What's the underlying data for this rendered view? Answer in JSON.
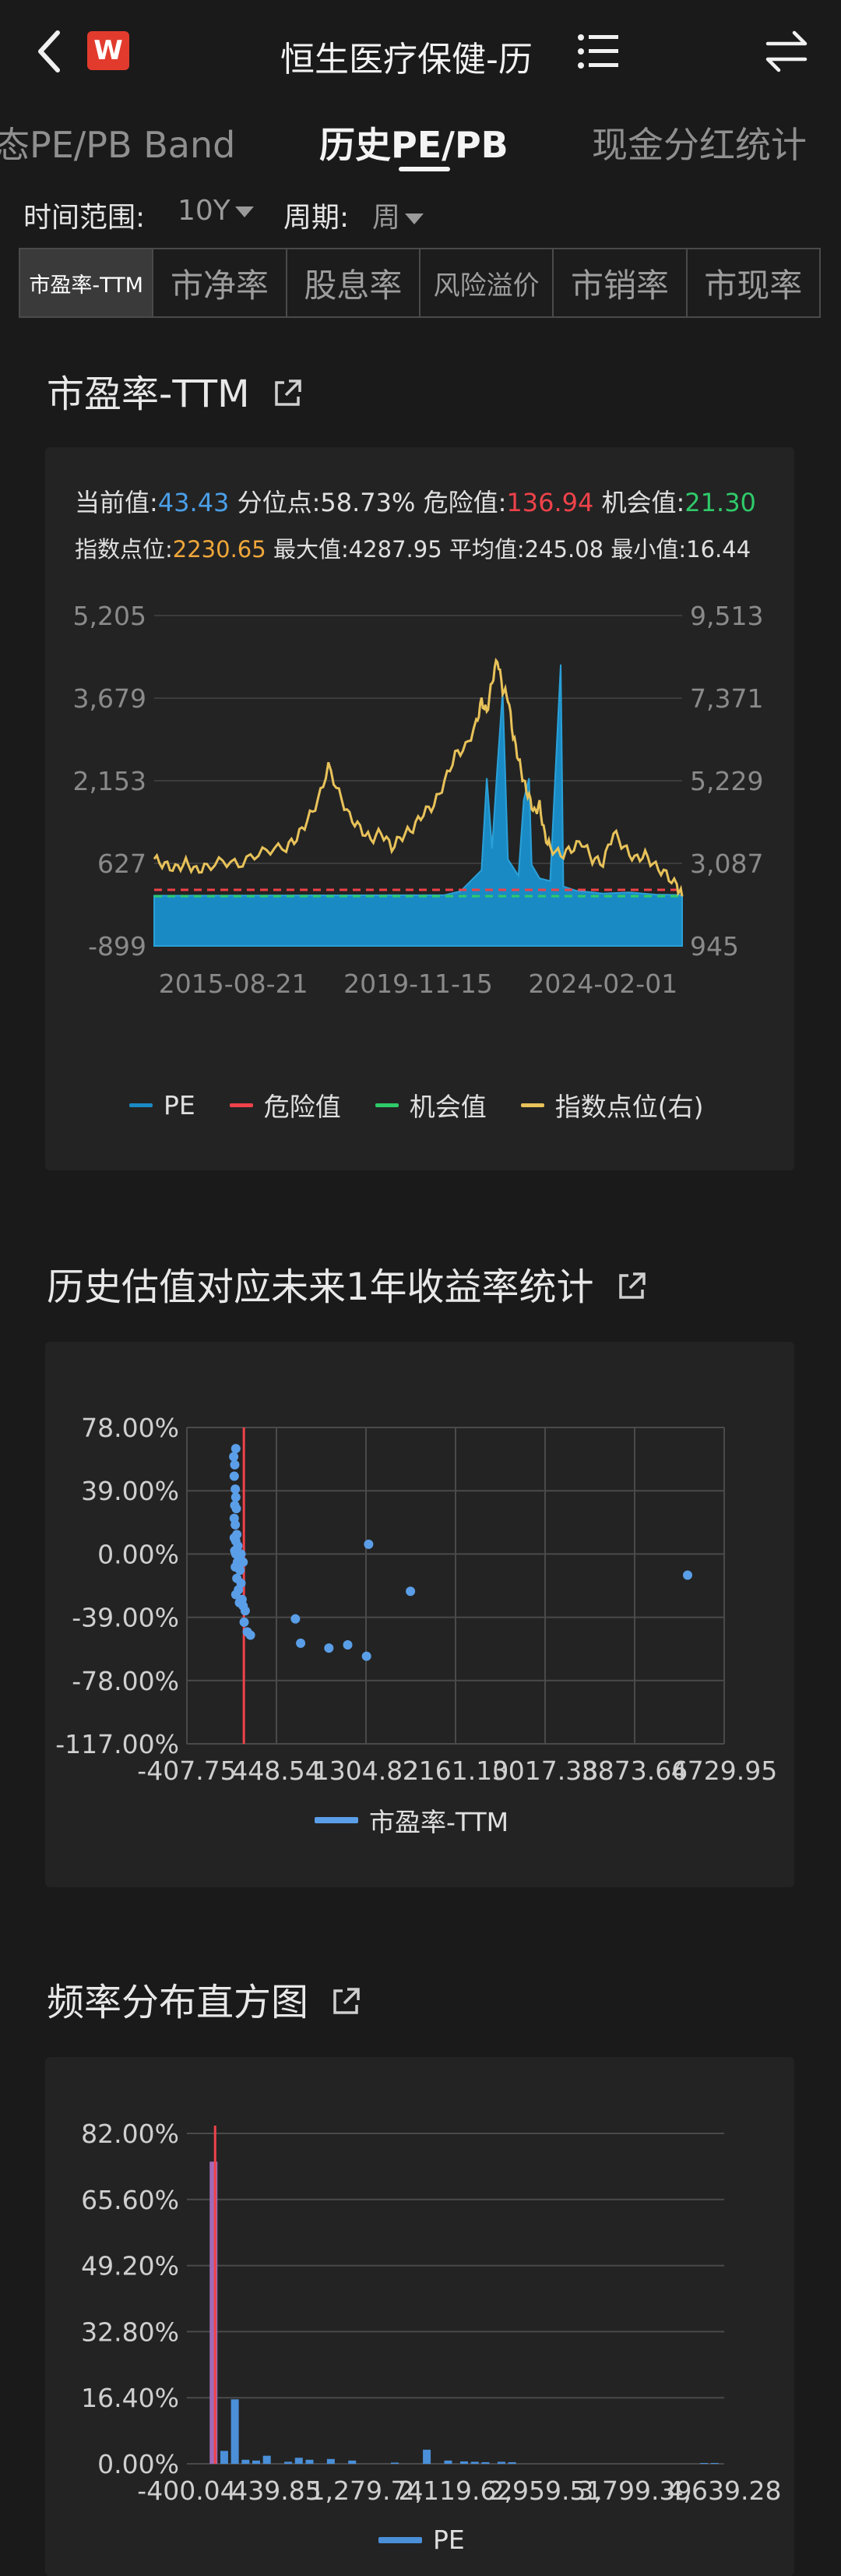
{
  "header": {
    "logo_text": "W",
    "title": "恒生医疗保健-历",
    "back_icon": "chevron-left-icon",
    "list_icon": "list-icon",
    "swap_icon": "swap-icon"
  },
  "tabs": [
    {
      "label": "态PE/PB Band"
    },
    {
      "label": "历史PE/PB"
    },
    {
      "label": "现金分红统计"
    }
  ],
  "filters": {
    "range_label": "时间范围:",
    "range_value": "10Y",
    "period_label": "周期:",
    "period_value": "周"
  },
  "metric_tabs": [
    {
      "label": "市盈率-TTM"
    },
    {
      "label": "市净率"
    },
    {
      "label": "股息率"
    },
    {
      "label": "风险溢价"
    },
    {
      "label": "市销率"
    },
    {
      "label": "市现率"
    }
  ],
  "pe_section": {
    "title": "市盈率-TTM",
    "stats": {
      "current_label": "当前值:",
      "current": "43.43",
      "pct_label": "分位点:",
      "pct": "58.73%",
      "danger_label": "危险值:",
      "danger": "136.94",
      "chance_label": "机会值:",
      "chance": "21.30",
      "index_label": "指数点位:",
      "index": "2230.65",
      "max_label": "最大值:",
      "max": "4287.95",
      "avg_label": "平均值:",
      "avg": "245.08",
      "min_label": "最小值:",
      "min": "16.44"
    },
    "legend": [
      "PE",
      "危险值",
      "机会值",
      "指数点位(右)"
    ]
  },
  "ret_section": {
    "title": "历史估值对应未来1年收益率统计",
    "legend": "市盈率-TTM"
  },
  "hist_section": {
    "title": "频率分布直方图",
    "legend": "PE"
  },
  "colors": {
    "pe": "#1a8ac4",
    "danger": "#f0424a",
    "chance": "#2fca6a",
    "index": "#e8c25a",
    "scatter": "#5a9ee8",
    "bar": "#4a8fd8"
  },
  "chart_data": [
    {
      "type": "area",
      "name": "pe-ttm-history",
      "x_ticks": [
        "2015-08-21",
        "2019-11-15",
        "2024-02-01"
      ],
      "y_left_ticks": [
        "5,205",
        "3,679",
        "2,153",
        "627",
        "-899"
      ],
      "y_right_ticks": [
        "9,513",
        "7,371",
        "5,229",
        "3,087",
        "945"
      ],
      "ylim_left": [
        -899,
        5205
      ],
      "ylim_right": [
        945,
        9513
      ],
      "danger_value": 136.94,
      "chance_value": 21.3,
      "pe_series": [
        [
          0,
          30
        ],
        [
          0.55,
          40
        ],
        [
          0.58,
          110
        ],
        [
          0.62,
          500
        ],
        [
          0.63,
          2200
        ],
        [
          0.64,
          900
        ],
        [
          0.65,
          2400
        ],
        [
          0.66,
          3800
        ],
        [
          0.67,
          700
        ],
        [
          0.69,
          400
        ],
        [
          0.7,
          1800
        ],
        [
          0.71,
          2200
        ],
        [
          0.715,
          600
        ],
        [
          0.73,
          350
        ],
        [
          0.75,
          300
        ],
        [
          0.77,
          4300
        ],
        [
          0.775,
          200
        ],
        [
          0.8,
          120
        ],
        [
          0.85,
          70
        ],
        [
          0.9,
          90
        ],
        [
          0.95,
          50
        ],
        [
          1.0,
          43
        ]
      ],
      "index_series": [
        [
          0.0,
          3200
        ],
        [
          0.02,
          3050
        ],
        [
          0.04,
          2950
        ],
        [
          0.06,
          3100
        ],
        [
          0.08,
          2900
        ],
        [
          0.1,
          3000
        ],
        [
          0.13,
          3150
        ],
        [
          0.16,
          3050
        ],
        [
          0.19,
          3300
        ],
        [
          0.22,
          3450
        ],
        [
          0.25,
          3500
        ],
        [
          0.27,
          3750
        ],
        [
          0.29,
          4200
        ],
        [
          0.31,
          4700
        ],
        [
          0.33,
          5600
        ],
        [
          0.35,
          4900
        ],
        [
          0.37,
          4300
        ],
        [
          0.39,
          4000
        ],
        [
          0.41,
          3700
        ],
        [
          0.43,
          3900
        ],
        [
          0.45,
          3500
        ],
        [
          0.47,
          3800
        ],
        [
          0.49,
          4000
        ],
        [
          0.51,
          4400
        ],
        [
          0.53,
          4600
        ],
        [
          0.55,
          5200
        ],
        [
          0.57,
          5900
        ],
        [
          0.59,
          6100
        ],
        [
          0.61,
          6700
        ],
        [
          0.62,
          7300
        ],
        [
          0.63,
          7000
        ],
        [
          0.64,
          7800
        ],
        [
          0.65,
          8400
        ],
        [
          0.66,
          7600
        ],
        [
          0.67,
          7400
        ],
        [
          0.68,
          6400
        ],
        [
          0.69,
          5800
        ],
        [
          0.7,
          5200
        ],
        [
          0.71,
          4800
        ],
        [
          0.72,
          4400
        ],
        [
          0.73,
          4600
        ],
        [
          0.74,
          3800
        ],
        [
          0.75,
          3500
        ],
        [
          0.77,
          3300
        ],
        [
          0.79,
          3450
        ],
        [
          0.81,
          3650
        ],
        [
          0.83,
          3200
        ],
        [
          0.85,
          3100
        ],
        [
          0.87,
          3900
        ],
        [
          0.89,
          3500
        ],
        [
          0.91,
          3200
        ],
        [
          0.93,
          3300
        ],
        [
          0.95,
          3000
        ],
        [
          0.97,
          2800
        ],
        [
          0.99,
          2500
        ],
        [
          1.0,
          2230
        ]
      ]
    },
    {
      "type": "scatter",
      "name": "future-return-vs-pe",
      "x_ticks": [
        "-407.75",
        "448.54",
        "1304.82",
        "2161.10",
        "3017.38",
        "3873.66",
        "4729.95"
      ],
      "y_ticks": [
        "78.00%",
        "39.00%",
        "0.00%",
        "-39.00%",
        "-78.00%",
        "-117.00%"
      ],
      "xlim": [
        -407.75,
        4729.95
      ],
      "ylim": [
        -117,
        78
      ],
      "danger_x": 136.94,
      "points": [
        [
          40,
          60
        ],
        [
          50,
          55
        ],
        [
          45,
          48
        ],
        [
          55,
          40
        ],
        [
          60,
          35
        ],
        [
          50,
          30
        ],
        [
          65,
          28
        ],
        [
          45,
          22
        ],
        [
          55,
          18
        ],
        [
          70,
          12
        ],
        [
          60,
          8
        ],
        [
          80,
          5
        ],
        [
          50,
          2
        ],
        [
          90,
          -2
        ],
        [
          75,
          -5
        ],
        [
          55,
          -8
        ],
        [
          100,
          -10
        ],
        [
          70,
          -15
        ],
        [
          110,
          -18
        ],
        [
          85,
          -22
        ],
        [
          60,
          -25
        ],
        [
          120,
          -28
        ],
        [
          95,
          -30
        ],
        [
          130,
          -32
        ],
        [
          150,
          -35
        ],
        [
          140,
          -42
        ],
        [
          170,
          -48
        ],
        [
          200,
          -50
        ],
        [
          60,
          0
        ],
        [
          45,
          10
        ],
        [
          60,
          65
        ],
        [
          110,
          0
        ],
        [
          130,
          -5
        ],
        [
          630,
          -40
        ],
        [
          680,
          -55
        ],
        [
          950,
          -58
        ],
        [
          1130,
          -56
        ],
        [
          1330,
          6
        ],
        [
          1310,
          -63
        ],
        [
          1730,
          -23
        ],
        [
          4380,
          -13
        ]
      ]
    },
    {
      "type": "bar",
      "name": "pe-frequency-histogram",
      "x_ticks": [
        "-400.04",
        "439.85",
        "1,279.74",
        "2,119.62",
        "2,959.51",
        "3,799.39",
        "4,639.28"
      ],
      "y_ticks": [
        "82.00%",
        "65.60%",
        "49.20%",
        "32.80%",
        "16.40%",
        "0.00%"
      ],
      "xlim": [
        -400.04,
        4639.28
      ],
      "ylim": [
        0,
        82
      ],
      "danger_x": 136.94,
      "bins": [
        [
          -150,
          75
        ],
        [
          -50,
          3.2
        ],
        [
          50,
          16
        ],
        [
          150,
          1.0
        ],
        [
          250,
          0.8
        ],
        [
          350,
          2
        ],
        [
          550,
          0.5
        ],
        [
          650,
          1.5
        ],
        [
          750,
          1.0
        ],
        [
          950,
          1.2
        ],
        [
          1150,
          0.8
        ],
        [
          1550,
          0.3
        ],
        [
          1850,
          3.5
        ],
        [
          2050,
          0.8
        ],
        [
          2200,
          0.6
        ],
        [
          2300,
          0.5
        ],
        [
          2400,
          0.4
        ],
        [
          2550,
          0.5
        ],
        [
          2650,
          0.4
        ],
        [
          4450,
          0.2
        ],
        [
          4550,
          0.2
        ]
      ]
    }
  ]
}
